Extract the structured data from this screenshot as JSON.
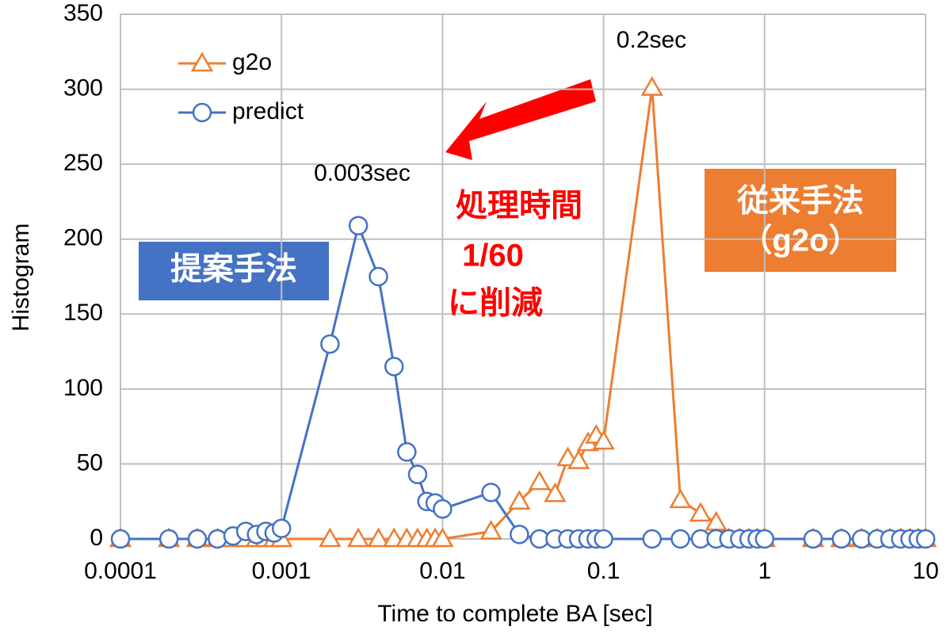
{
  "chart_data": {
    "type": "line",
    "x": [
      0.0001,
      0.0002,
      0.0003,
      0.0004,
      0.0005,
      0.0006,
      0.0007,
      0.0008,
      0.0009,
      0.001,
      0.002,
      0.003,
      0.004,
      0.005,
      0.006,
      0.007,
      0.008,
      0.009,
      0.01,
      0.02,
      0.03,
      0.04,
      0.05,
      0.06,
      0.07,
      0.08,
      0.09,
      0.1,
      0.2,
      0.3,
      0.4,
      0.5,
      0.6,
      0.7,
      0.8,
      0.9,
      1,
      2,
      3,
      4,
      5,
      6,
      7,
      8,
      9,
      10
    ],
    "series": [
      {
        "name": "g2o",
        "color": "#ed7d31",
        "marker": "triangle",
        "values": [
          0,
          0,
          0,
          0,
          0,
          0,
          0,
          0,
          0,
          0,
          0,
          0,
          0,
          0,
          0,
          0,
          0,
          0,
          0,
          5,
          25,
          38,
          30,
          54,
          52,
          64,
          69,
          65,
          301,
          26,
          17,
          11,
          0,
          0,
          0,
          0,
          0,
          0,
          0,
          0,
          0,
          0,
          0,
          0,
          0,
          0
        ]
      },
      {
        "name": "predict",
        "color": "#4472c4",
        "marker": "circle",
        "values": [
          0,
          0,
          0,
          0,
          2,
          5,
          3,
          5,
          4,
          7,
          130,
          209,
          175,
          115,
          58,
          43,
          25,
          24,
          20,
          31,
          3,
          0,
          0,
          0,
          0,
          0,
          0,
          0,
          0,
          0,
          0,
          0,
          0,
          0,
          0,
          0,
          0,
          0,
          0,
          0,
          0,
          0,
          0,
          0,
          0,
          0
        ]
      }
    ],
    "xlabel": "Time to complete BA [sec]",
    "ylabel": "Histogram",
    "xscale": "log",
    "xlim": [
      0.0001,
      10
    ],
    "xticks": [
      0.0001,
      0.001,
      0.01,
      0.1,
      1,
      10
    ],
    "ylim": [
      0,
      350
    ],
    "yticks": [
      0,
      50,
      100,
      150,
      200,
      250,
      300,
      350
    ],
    "grid": true,
    "legend": "upper left",
    "annotations": [
      "0.2sec",
      "0.003sec",
      "処理時間",
      "1/60",
      "に削減",
      "提案手法",
      "従来手法",
      "（g2o）"
    ]
  }
}
